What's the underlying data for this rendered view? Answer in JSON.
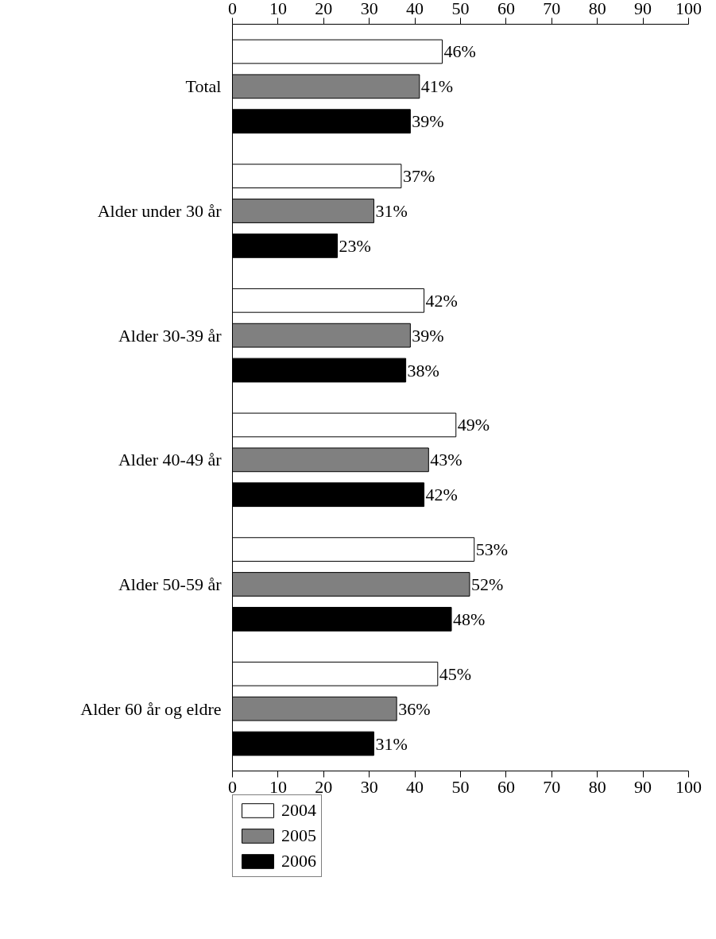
{
  "chart_data": {
    "type": "bar",
    "orientation": "horizontal",
    "categories": [
      "Total",
      "Alder under 30 år",
      "Alder 30-39 år",
      "Alder 40-49 år",
      "Alder 50-59 år",
      "Alder 60 år og eldre"
    ],
    "series": [
      {
        "name": "2004",
        "color": "#ffffff",
        "values": [
          46,
          37,
          42,
          49,
          53,
          45
        ],
        "value_labels": [
          "46%",
          "37%",
          "42%",
          "49%",
          "53%",
          "45%"
        ]
      },
      {
        "name": "2005",
        "color": "#808080",
        "values": [
          41,
          31,
          39,
          43,
          52,
          36
        ],
        "value_labels": [
          "41%",
          "31%",
          "39%",
          "43%",
          "52%",
          "36%"
        ]
      },
      {
        "name": "2006",
        "color": "#000000",
        "values": [
          39,
          23,
          38,
          42,
          48,
          31
        ],
        "value_labels": [
          "39%",
          "23%",
          "38%",
          "42%",
          "48%",
          "31%"
        ]
      }
    ],
    "xlim": [
      0,
      100
    ],
    "xticks": [
      0,
      10,
      20,
      30,
      40,
      50,
      60,
      70,
      80,
      90,
      100
    ],
    "x2lim": [
      0,
      100
    ],
    "x2ticks": [
      0,
      10,
      20,
      30,
      40,
      50,
      60,
      70,
      80,
      90,
      100
    ],
    "grid": false,
    "legend": "bottom"
  }
}
